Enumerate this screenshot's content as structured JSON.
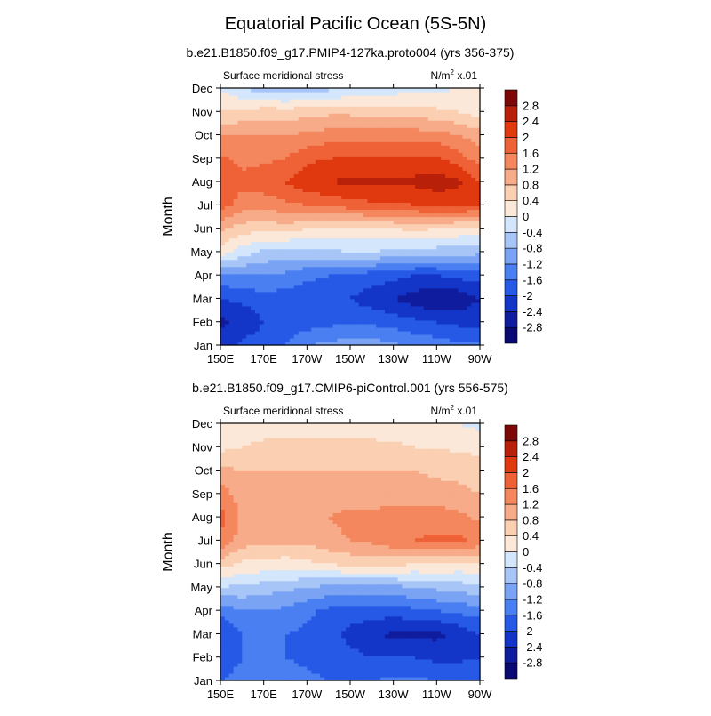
{
  "title": "Equatorial Pacific Ocean (5S-5N)",
  "chart_data": [
    {
      "type": "heatmap",
      "subtitle": "b.e21.B1850.f09_g17.PMIP4-127ka.proto004 (yrs 356-375)",
      "left_label": "Surface meridional stress",
      "units_base": "N/m",
      "units_exp": "2",
      "units_suffix": " x.01",
      "ylabel": "Month",
      "x_ticks": [
        "150E",
        "170E",
        "170W",
        "150W",
        "130W",
        "110W",
        "90W"
      ],
      "y_ticks": [
        "Jan",
        "Feb",
        "Mar",
        "Apr",
        "May",
        "Jun",
        "Jul",
        "Aug",
        "Sep",
        "Oct",
        "Nov",
        "Dec"
      ],
      "x": [
        150,
        160,
        170,
        180,
        190,
        200,
        210,
        220,
        230,
        240,
        250,
        260,
        270
      ],
      "z": [
        [
          -2.2,
          -1.9,
          -1.8,
          -1.6,
          -1.2,
          -1.1,
          -1.0,
          -1.0,
          -1.1,
          -1.3,
          -1.4,
          -1.5,
          -1.5
        ],
        [
          -2.5,
          -2.3,
          -2.0,
          -1.9,
          -1.8,
          -1.7,
          -1.7,
          -1.7,
          -1.8,
          -1.9,
          -2.0,
          -2.1,
          -2.1
        ],
        [
          -2.0,
          -1.9,
          -1.8,
          -1.8,
          -1.9,
          -1.9,
          -2.0,
          -2.2,
          -2.4,
          -2.6,
          -2.8,
          -2.7,
          -2.4
        ],
        [
          -1.3,
          -1.2,
          -1.2,
          -1.3,
          -1.5,
          -1.6,
          -1.7,
          -1.8,
          -1.9,
          -2.0,
          -2.0,
          -1.9,
          -1.8
        ],
        [
          0.2,
          -0.2,
          -0.5,
          -0.6,
          -0.5,
          -0.5,
          -0.4,
          -0.4,
          -0.5,
          -0.6,
          -0.6,
          -0.6,
          -0.7
        ],
        [
          0.9,
          0.6,
          0.5,
          0.6,
          0.4,
          0.3,
          0.3,
          0.3,
          0.4,
          0.5,
          0.4,
          0.3,
          0.2
        ],
        [
          1.8,
          1.4,
          1.3,
          1.5,
          1.6,
          1.7,
          1.8,
          1.9,
          1.9,
          2.0,
          2.1,
          2.1,
          2.1
        ],
        [
          1.9,
          1.7,
          1.9,
          2.0,
          2.3,
          2.4,
          2.5,
          2.5,
          2.5,
          2.5,
          2.6,
          2.5,
          2.0
        ],
        [
          1.7,
          1.5,
          1.5,
          1.6,
          1.9,
          2.0,
          2.1,
          2.1,
          2.1,
          2.1,
          2.1,
          1.8,
          1.4
        ],
        [
          1.2,
          1.2,
          1.2,
          1.2,
          1.3,
          1.4,
          1.4,
          1.4,
          1.4,
          1.4,
          1.4,
          1.2,
          1.0
        ],
        [
          0.4,
          0.5,
          0.6,
          0.6,
          0.6,
          0.7,
          0.7,
          0.6,
          0.6,
          0.6,
          0.5,
          0.4,
          0.2
        ],
        [
          0.0,
          -0.4,
          -0.6,
          -0.7,
          -0.6,
          -0.5,
          -0.4,
          -0.3,
          -0.2,
          -0.1,
          -0.1,
          0.0,
          0.0
        ]
      ]
    },
    {
      "type": "heatmap",
      "subtitle": "b.e21.B1850.f09_g17.CMIP6-piControl.001 (yrs 556-575)",
      "left_label": "Surface meridional stress",
      "units_base": "N/m",
      "units_exp": "2",
      "units_suffix": " x.01",
      "ylabel": "Month",
      "x_ticks": [
        "150E",
        "170E",
        "170W",
        "150W",
        "130W",
        "110W",
        "90W"
      ],
      "y_ticks": [
        "Jan",
        "Feb",
        "Mar",
        "Apr",
        "May",
        "Jun",
        "Jul",
        "Aug",
        "Sep",
        "Oct",
        "Nov",
        "Dec"
      ],
      "x": [
        150,
        160,
        170,
        180,
        190,
        200,
        210,
        220,
        230,
        240,
        250,
        260,
        270
      ],
      "z": [
        [
          -1.6,
          -1.5,
          -1.5,
          -1.4,
          -1.5,
          -1.6,
          -1.6,
          -1.6,
          -1.5,
          -1.5,
          -1.6,
          -1.6,
          -1.6
        ],
        [
          -1.8,
          -1.6,
          -1.6,
          -1.6,
          -1.7,
          -1.8,
          -1.9,
          -2.0,
          -2.0,
          -2.0,
          -2.1,
          -2.1,
          -2.0
        ],
        [
          -1.9,
          -1.6,
          -1.6,
          -1.6,
          -1.7,
          -1.9,
          -2.1,
          -2.3,
          -2.5,
          -2.5,
          -2.5,
          -2.3,
          -2.0
        ],
        [
          -1.5,
          -1.2,
          -1.2,
          -1.3,
          -1.5,
          -1.7,
          -1.8,
          -1.8,
          -1.8,
          -1.7,
          -1.6,
          -1.5,
          -1.4
        ],
        [
          -0.4,
          -0.5,
          -0.6,
          -0.7,
          -0.8,
          -0.9,
          -0.9,
          -0.9,
          -0.9,
          -0.8,
          -0.7,
          -0.6,
          -0.5
        ],
        [
          0.6,
          0.3,
          0.3,
          0.2,
          0.3,
          0.4,
          0.5,
          0.5,
          0.5,
          0.4,
          0.4,
          0.3,
          0.3
        ],
        [
          1.5,
          1.0,
          0.9,
          0.9,
          0.9,
          1.1,
          1.2,
          1.3,
          1.5,
          1.6,
          1.7,
          1.7,
          1.5
        ],
        [
          1.8,
          1.1,
          1.0,
          1.0,
          1.0,
          1.2,
          1.3,
          1.3,
          1.4,
          1.4,
          1.4,
          1.3,
          1.1
        ],
        [
          1.4,
          1.0,
          0.9,
          0.9,
          0.9,
          1.0,
          1.0,
          1.0,
          1.0,
          1.0,
          1.0,
          0.9,
          0.8
        ],
        [
          0.9,
          0.8,
          0.8,
          0.8,
          0.8,
          0.8,
          0.8,
          0.8,
          0.8,
          0.8,
          0.7,
          0.7,
          0.6
        ],
        [
          0.3,
          0.4,
          0.5,
          0.5,
          0.5,
          0.5,
          0.5,
          0.5,
          0.5,
          0.4,
          0.4,
          0.3,
          0.3
        ],
        [
          0.1,
          0.1,
          0.2,
          0.2,
          0.2,
          0.2,
          0.2,
          0.2,
          0.1,
          0.1,
          0.1,
          0.0,
          -0.1
        ]
      ]
    }
  ],
  "colorbar": {
    "levels": [
      -2.8,
      -2.4,
      -2,
      -1.6,
      -1.2,
      -0.8,
      -0.4,
      0,
      0.4,
      0.8,
      1.2,
      1.6,
      2,
      2.4,
      2.8
    ],
    "labels": [
      "-2.8",
      "-2.4",
      "-2",
      "-1.6",
      "-1.2",
      "-0.8",
      "-0.4",
      "0",
      "0.4",
      "0.8",
      "1.2",
      "1.6",
      "2",
      "2.4",
      "2.8"
    ],
    "colors": [
      "#0a0a72",
      "#0f1c9d",
      "#1436c8",
      "#2659e6",
      "#4a7ff2",
      "#7aa3f4",
      "#a8c5f8",
      "#d4e6fb",
      "#fbe8d8",
      "#fbcfb2",
      "#f7ab88",
      "#f4875e",
      "#ef6136",
      "#e0380f",
      "#b9200a",
      "#7d0808"
    ]
  }
}
